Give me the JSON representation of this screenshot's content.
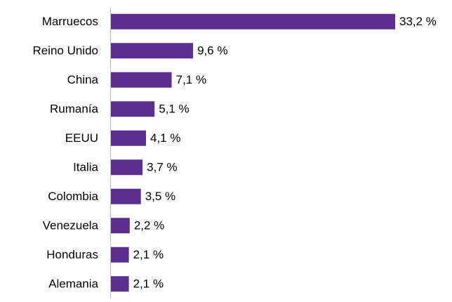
{
  "chart_data": {
    "type": "bar",
    "orientation": "horizontal",
    "categories": [
      "Marruecos",
      "Reino Unido",
      "China",
      "Rumanía",
      "EEUU",
      "Italia",
      "Colombia",
      "Venezuela",
      "Honduras",
      "Alemania"
    ],
    "values": [
      33.2,
      9.6,
      7.1,
      5.1,
      4.1,
      3.7,
      3.5,
      2.2,
      2.1,
      2.1
    ],
    "value_labels": [
      "33,2 %",
      "9,6 %",
      "7,1 %",
      "5,1 %",
      "4,1 %",
      "3,7 %",
      "3,5 %",
      "2,2 %",
      "2,1 %",
      "2,1 %"
    ],
    "color": "#5b2e8f"
  }
}
